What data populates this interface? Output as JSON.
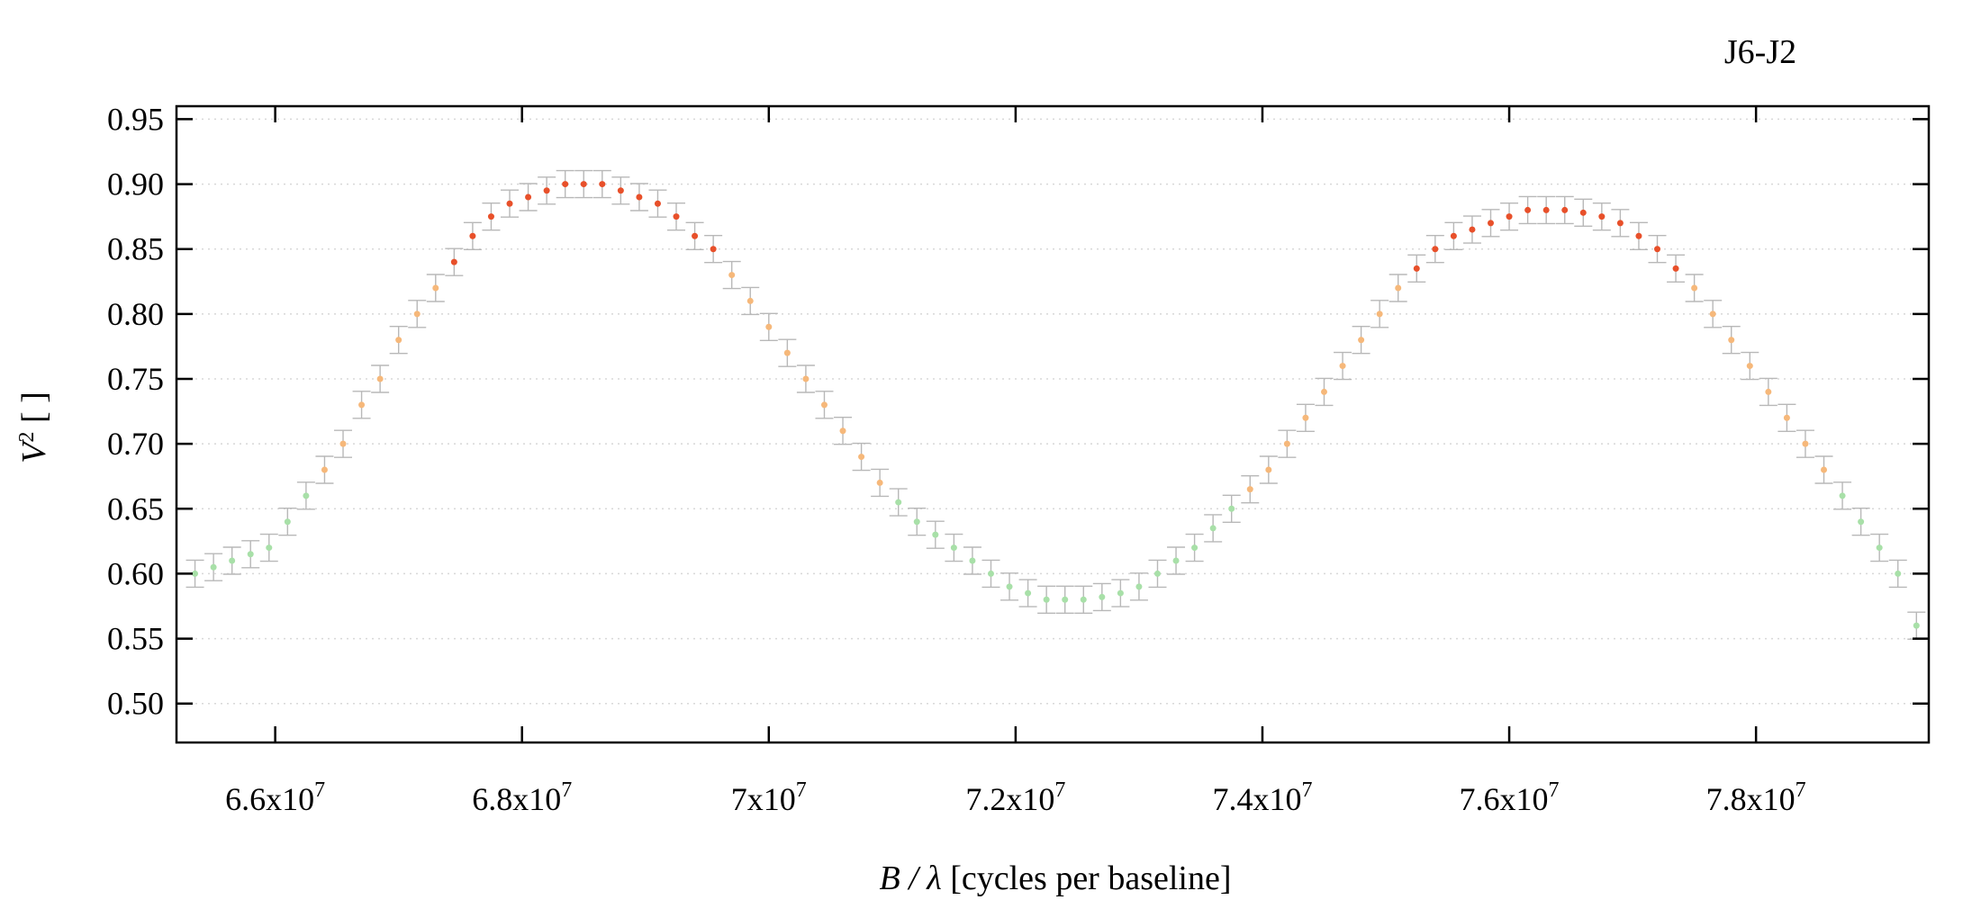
{
  "chart_data": {
    "type": "scatter",
    "title": "J6-J2",
    "xlabel": {
      "var": "B / λ",
      "text": " [cycles per baseline]"
    },
    "ylabel": {
      "var": "V",
      "sup": "2",
      "text": " [ ]"
    },
    "xlim": [
      65200000,
      79400000
    ],
    "ylim": [
      0.47,
      0.96
    ],
    "grid": {
      "x": false,
      "y": true
    },
    "error_bars": true,
    "xticks": [
      {
        "value": 66000000,
        "mantissa": "6.6x10",
        "exp": "7"
      },
      {
        "value": 68000000,
        "mantissa": "6.8x10",
        "exp": "7"
      },
      {
        "value": 70000000,
        "mantissa": "7x10",
        "exp": "7"
      },
      {
        "value": 72000000,
        "mantissa": "7.2x10",
        "exp": "7"
      },
      {
        "value": 74000000,
        "mantissa": "7.4x10",
        "exp": "7"
      },
      {
        "value": 76000000,
        "mantissa": "7.6x10",
        "exp": "7"
      },
      {
        "value": 78000000,
        "mantissa": "7.8x10",
        "exp": "7"
      }
    ],
    "yticks": [
      "0.50",
      "0.55",
      "0.60",
      "0.65",
      "0.70",
      "0.75",
      "0.80",
      "0.85",
      "0.90",
      "0.95"
    ],
    "colors": {
      "low": "#a8e0a8",
      "mid": "#f6b87a",
      "high": "#e8502a",
      "error": "#b8b8b8",
      "grid": "#d8d8d8",
      "axis": "#000000"
    },
    "series": [
      {
        "x": [
          65350000,
          65500000,
          65650000,
          65800000,
          65950000,
          66100000,
          66250000,
          66400000,
          66550000,
          66700000,
          66850000,
          67000000,
          67150000,
          67300000,
          67450000,
          67600000,
          67750000,
          67900000,
          68050000,
          68200000,
          68350000,
          68500000,
          68650000,
          68800000,
          68950000,
          69100000,
          69250000,
          69400000,
          69550000,
          69700000,
          69850000,
          70000000,
          70150000,
          70300000,
          70450000,
          70600000,
          70750000,
          70900000,
          71050000,
          71200000,
          71350000,
          71500000,
          71650000,
          71800000,
          71950000,
          72100000,
          72250000,
          72400000,
          72550000,
          72700000,
          72850000,
          73000000,
          73150000,
          73300000,
          73450000,
          73600000,
          73750000,
          73900000,
          74050000,
          74200000,
          74350000,
          74500000,
          74650000,
          74800000,
          74950000,
          75100000,
          75250000,
          75400000,
          75550000,
          75700000,
          75850000,
          76000000,
          76150000,
          76300000,
          76450000,
          76600000,
          76750000,
          76900000,
          77050000,
          77200000,
          77350000,
          77500000,
          77650000,
          77800000,
          77950000,
          78100000,
          78250000,
          78400000,
          78550000,
          78700000,
          78850000,
          79000000,
          79150000,
          79300000
        ],
        "y": [
          0.6,
          0.605,
          0.61,
          0.615,
          0.62,
          0.64,
          0.66,
          0.68,
          0.7,
          0.73,
          0.75,
          0.78,
          0.8,
          0.82,
          0.84,
          0.86,
          0.875,
          0.885,
          0.89,
          0.895,
          0.9,
          0.9,
          0.9,
          0.895,
          0.89,
          0.885,
          0.875,
          0.86,
          0.85,
          0.83,
          0.81,
          0.79,
          0.77,
          0.75,
          0.73,
          0.71,
          0.69,
          0.67,
          0.655,
          0.64,
          0.63,
          0.62,
          0.61,
          0.6,
          0.59,
          0.585,
          0.58,
          0.58,
          0.58,
          0.582,
          0.585,
          0.59,
          0.6,
          0.61,
          0.62,
          0.635,
          0.65,
          0.665,
          0.68,
          0.7,
          0.72,
          0.74,
          0.76,
          0.78,
          0.8,
          0.82,
          0.835,
          0.85,
          0.86,
          0.865,
          0.87,
          0.875,
          0.88,
          0.88,
          0.88,
          0.878,
          0.875,
          0.87,
          0.86,
          0.85,
          0.835,
          0.82,
          0.8,
          0.78,
          0.76,
          0.74,
          0.72,
          0.7,
          0.68,
          0.66,
          0.64,
          0.62,
          0.6,
          0.56
        ]
      }
    ]
  }
}
